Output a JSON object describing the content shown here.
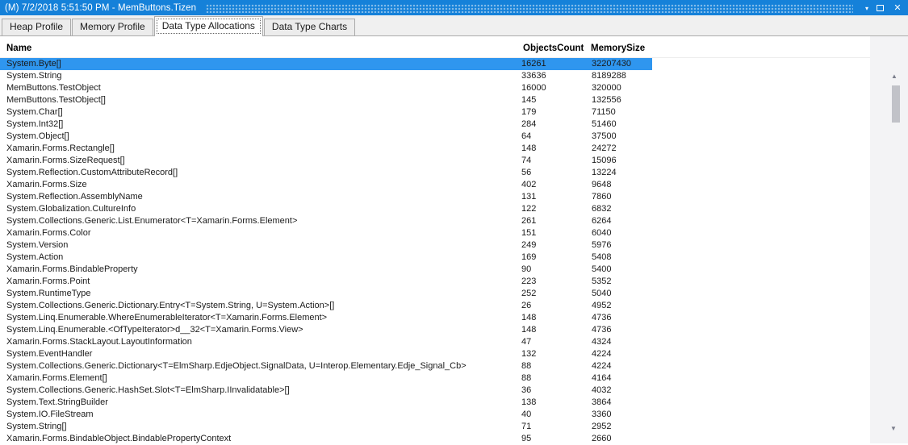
{
  "window": {
    "title": "(M) 7/2/2018 5:51:50 PM - MemButtons.Tizen",
    "controls": {
      "window_menu_glyph": "▾",
      "close_glyph": "✕"
    }
  },
  "tabs": {
    "active_index": 2,
    "items": [
      {
        "label": "Heap Profile"
      },
      {
        "label": "Memory Profile"
      },
      {
        "label": "Data Type Allocations"
      },
      {
        "label": "Data Type Charts"
      }
    ]
  },
  "table": {
    "columns": [
      "Name",
      "ObjectsCount",
      "MemorySize"
    ],
    "selected_index": 0,
    "rows": [
      {
        "name": "System.Byte[]",
        "objects_count": 16261,
        "memory_size": 32207430
      },
      {
        "name": "System.String",
        "objects_count": 33636,
        "memory_size": 8189288
      },
      {
        "name": "MemButtons.TestObject",
        "objects_count": 16000,
        "memory_size": 320000
      },
      {
        "name": "MemButtons.TestObject[]",
        "objects_count": 145,
        "memory_size": 132556
      },
      {
        "name": "System.Char[]",
        "objects_count": 179,
        "memory_size": 71150
      },
      {
        "name": "System.Int32[]",
        "objects_count": 284,
        "memory_size": 51460
      },
      {
        "name": "System.Object[]",
        "objects_count": 64,
        "memory_size": 37500
      },
      {
        "name": "Xamarin.Forms.Rectangle[]",
        "objects_count": 148,
        "memory_size": 24272
      },
      {
        "name": "Xamarin.Forms.SizeRequest[]",
        "objects_count": 74,
        "memory_size": 15096
      },
      {
        "name": "System.Reflection.CustomAttributeRecord[]",
        "objects_count": 56,
        "memory_size": 13224
      },
      {
        "name": "Xamarin.Forms.Size",
        "objects_count": 402,
        "memory_size": 9648
      },
      {
        "name": "System.Reflection.AssemblyName",
        "objects_count": 131,
        "memory_size": 7860
      },
      {
        "name": "System.Globalization.CultureInfo",
        "objects_count": 122,
        "memory_size": 6832
      },
      {
        "name": "System.Collections.Generic.List.Enumerator<T=Xamarin.Forms.Element>",
        "objects_count": 261,
        "memory_size": 6264
      },
      {
        "name": "Xamarin.Forms.Color",
        "objects_count": 151,
        "memory_size": 6040
      },
      {
        "name": "System.Version",
        "objects_count": 249,
        "memory_size": 5976
      },
      {
        "name": "System.Action",
        "objects_count": 169,
        "memory_size": 5408
      },
      {
        "name": "Xamarin.Forms.BindableProperty",
        "objects_count": 90,
        "memory_size": 5400
      },
      {
        "name": "Xamarin.Forms.Point",
        "objects_count": 223,
        "memory_size": 5352
      },
      {
        "name": "System.RuntimeType",
        "objects_count": 252,
        "memory_size": 5040
      },
      {
        "name": "System.Collections.Generic.Dictionary.Entry<T=System.String, U=System.Action>[]",
        "objects_count": 26,
        "memory_size": 4952
      },
      {
        "name": "System.Linq.Enumerable.WhereEnumerableIterator<T=Xamarin.Forms.Element>",
        "objects_count": 148,
        "memory_size": 4736
      },
      {
        "name": "System.Linq.Enumerable.<OfTypeIterator>d__32<T=Xamarin.Forms.View>",
        "objects_count": 148,
        "memory_size": 4736
      },
      {
        "name": "Xamarin.Forms.StackLayout.LayoutInformation",
        "objects_count": 47,
        "memory_size": 4324
      },
      {
        "name": "System.EventHandler",
        "objects_count": 132,
        "memory_size": 4224
      },
      {
        "name": "System.Collections.Generic.Dictionary<T=ElmSharp.EdjeObject.SignalData, U=Interop.Elementary.Edje_Signal_Cb>",
        "objects_count": 88,
        "memory_size": 4224
      },
      {
        "name": "Xamarin.Forms.Element[]",
        "objects_count": 88,
        "memory_size": 4164
      },
      {
        "name": "System.Collections.Generic.HashSet.Slot<T=ElmSharp.IInvalidatable>[]",
        "objects_count": 36,
        "memory_size": 4032
      },
      {
        "name": "System.Text.StringBuilder",
        "objects_count": 138,
        "memory_size": 3864
      },
      {
        "name": "System.IO.FileStream",
        "objects_count": 40,
        "memory_size": 3360
      },
      {
        "name": "System.String[]",
        "objects_count": 71,
        "memory_size": 2952
      },
      {
        "name": "Xamarin.Forms.BindableObject.BindablePropertyContext",
        "objects_count": 95,
        "memory_size": 2660
      }
    ]
  },
  "scrollbar": {
    "up_glyph": "▲",
    "down_glyph": "▼"
  },
  "colors": {
    "titlebar_bg": "#1581D9",
    "titlebar_text": "#FFFFFF",
    "selection_bg": "#2F96EF",
    "row_text": "#1B1B1B",
    "panel_bg": "#F3F3F5",
    "scroll_thumb": "#C1C2C8",
    "scroll_arrow": "#7B7E8C",
    "tab_border": "#ABABAB",
    "tabstrip_bg": "#F0F0F0"
  }
}
